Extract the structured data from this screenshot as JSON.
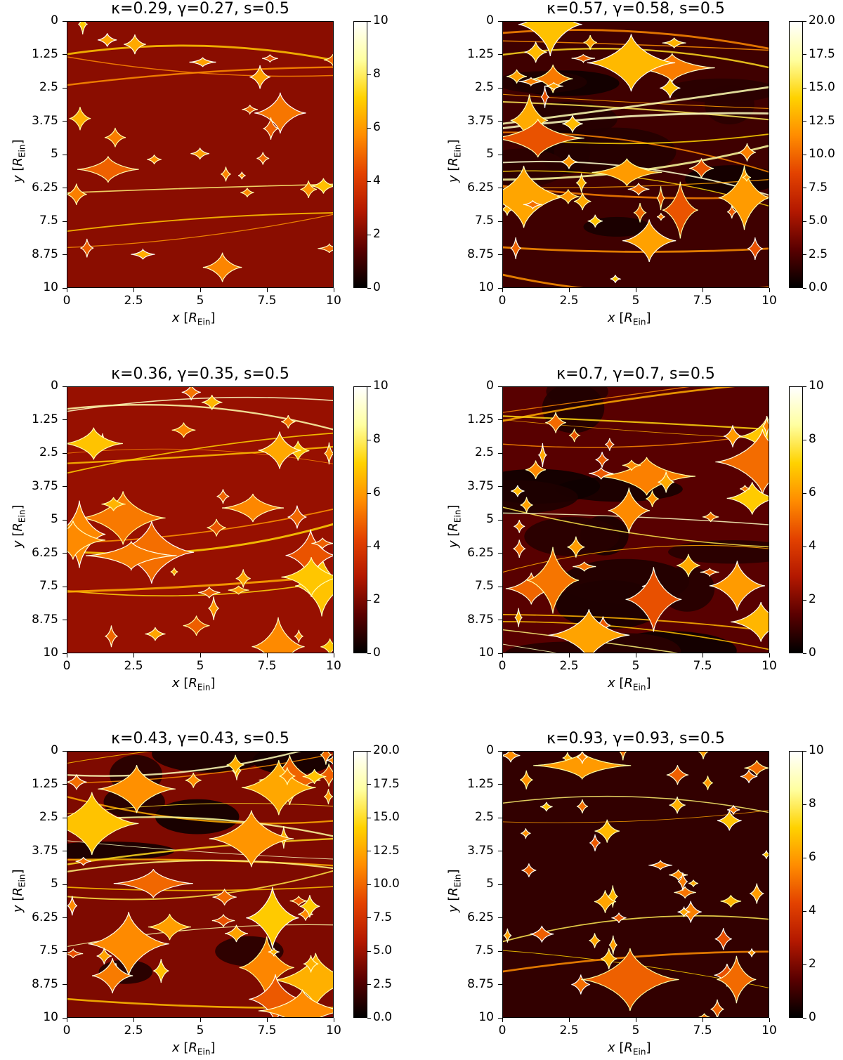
{
  "colormap": [
    "#000000",
    "#5a0000",
    "#b31800",
    "#e34200",
    "#ff8c00",
    "#ffd200",
    "#ffffa0",
    "#ffffff"
  ],
  "chart_data": [
    {
      "type": "heatmap",
      "title": "κ=0.29, γ=0.27, s=0.5",
      "xlabel": "x [R_Ein]",
      "ylabel": "y [R_Ein]",
      "xlim": [
        0,
        10
      ],
      "ylim": [
        0,
        10
      ],
      "x_ticks": [
        "0",
        "2.5",
        "5",
        "7.5",
        "10"
      ],
      "y_ticks": [
        "0",
        "1.25",
        "2.5",
        "3.75",
        "5",
        "6.25",
        "7.5",
        "8.75",
        "10"
      ],
      "colorbar": {
        "range": [
          0,
          10
        ],
        "ticks": [
          "0",
          "2",
          "4",
          "6",
          "8",
          "10"
        ]
      }
    },
    {
      "type": "heatmap",
      "title": "κ=0.57, γ=0.58, s=0.5",
      "xlabel": "x [R_Ein]",
      "ylabel": "y [R_Ein]",
      "xlim": [
        0,
        10
      ],
      "ylim": [
        0,
        10
      ],
      "x_ticks": [
        "0",
        "2.5",
        "5",
        "7.5",
        "10"
      ],
      "y_ticks": [
        "0",
        "1.25",
        "2.5",
        "3.75",
        "5",
        "6.25",
        "7.5",
        "8.75",
        "10"
      ],
      "colorbar": {
        "range": [
          0,
          20
        ],
        "ticks": [
          "0.0",
          "2.5",
          "5.0",
          "7.5",
          "10.0",
          "12.5",
          "15.0",
          "17.5",
          "20.0"
        ]
      }
    },
    {
      "type": "heatmap",
      "title": "κ=0.36, γ=0.35, s=0.5",
      "xlabel": "x [R_Ein]",
      "ylabel": "y [R_Ein]",
      "xlim": [
        0,
        10
      ],
      "ylim": [
        0,
        10
      ],
      "x_ticks": [
        "0",
        "2.5",
        "5",
        "7.5",
        "10"
      ],
      "y_ticks": [
        "0",
        "1.25",
        "2.5",
        "3.75",
        "5",
        "6.25",
        "7.5",
        "8.75",
        "10"
      ],
      "colorbar": {
        "range": [
          0,
          10
        ],
        "ticks": [
          "0",
          "2",
          "4",
          "6",
          "8",
          "10"
        ]
      }
    },
    {
      "type": "heatmap",
      "title": "κ=0.7, γ=0.7, s=0.5",
      "xlabel": "x [R_Ein]",
      "ylabel": "y [R_Ein]",
      "xlim": [
        0,
        10
      ],
      "ylim": [
        0,
        10
      ],
      "x_ticks": [
        "0",
        "2.5",
        "5",
        "7.5",
        "10"
      ],
      "y_ticks": [
        "0",
        "1.25",
        "2.5",
        "3.75",
        "5",
        "6.25",
        "7.5",
        "8.75",
        "10"
      ],
      "colorbar": {
        "range": [
          0,
          10
        ],
        "ticks": [
          "0",
          "2",
          "4",
          "6",
          "8",
          "10"
        ]
      }
    },
    {
      "type": "heatmap",
      "title": "κ=0.43, γ=0.43, s=0.5",
      "xlabel": "x [R_Ein]",
      "ylabel": "y [R_Ein]",
      "xlim": [
        0,
        10
      ],
      "ylim": [
        0,
        10
      ],
      "x_ticks": [
        "0",
        "2.5",
        "5",
        "7.5",
        "10"
      ],
      "y_ticks": [
        "0",
        "1.25",
        "2.5",
        "3.75",
        "5",
        "6.25",
        "7.5",
        "8.75",
        "10"
      ],
      "colorbar": {
        "range": [
          0,
          20
        ],
        "ticks": [
          "0.0",
          "2.5",
          "5.0",
          "7.5",
          "10.0",
          "12.5",
          "15.0",
          "17.5",
          "20.0"
        ]
      }
    },
    {
      "type": "heatmap",
      "title": "κ=0.93, γ=0.93, s=0.5",
      "xlabel": "x [R_Ein]",
      "ylabel": "y [R_Ein]",
      "xlim": [
        0,
        10
      ],
      "ylim": [
        0,
        10
      ],
      "x_ticks": [
        "0",
        "2.5",
        "5",
        "7.5",
        "10"
      ],
      "y_ticks": [
        "0",
        "1.25",
        "2.5",
        "3.75",
        "5",
        "6.25",
        "7.5",
        "8.75",
        "10"
      ],
      "colorbar": {
        "range": [
          0,
          10
        ],
        "ticks": [
          "0",
          "2",
          "4",
          "6",
          "8",
          "10"
        ]
      }
    }
  ]
}
